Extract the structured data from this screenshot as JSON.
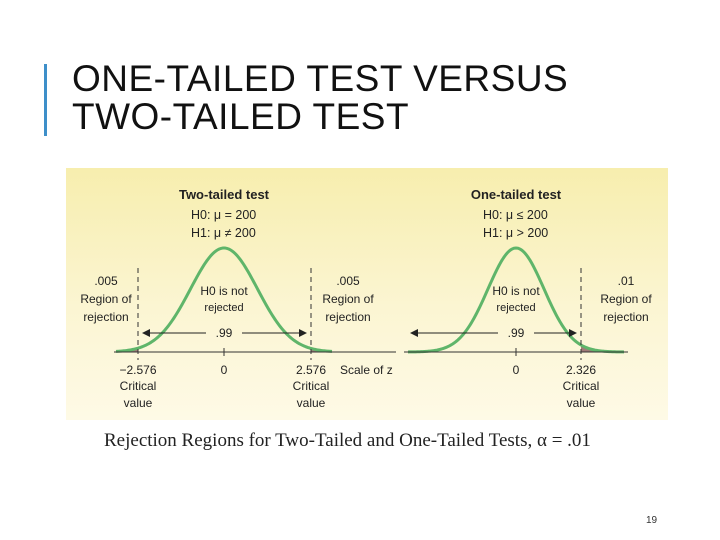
{
  "slide": {
    "title_line1": "ONE-TAILED TEST VERSUS",
    "title_line2": "TWO-TAILED TEST",
    "caption": "Rejection Regions for Two-Tailed and One-Tailed Tests, α = .01",
    "page_number": "19"
  },
  "colors": {
    "accent": "#3e8fc9",
    "curve": "#5fb56a",
    "rejection_fill": "#a07a78",
    "panel_background": "#f7eeae"
  },
  "figure": {
    "scale_label": "Scale of z",
    "two_tailed": {
      "title": "Two-tailed test",
      "h0": "H0: μ = 200",
      "h1": "H1: μ ≠ 200",
      "center_line1": "H0 is not",
      "center_line2": "rejected",
      "middle_area": ".99",
      "left_region": {
        "alpha": ".005",
        "line1": "Region of",
        "line2": "rejection"
      },
      "right_region": {
        "alpha": ".005",
        "line1": "Region of",
        "line2": "rejection"
      },
      "ticks": {
        "left": "−2.576",
        "center": "0",
        "right": "2.576"
      },
      "left_critical": [
        "Critical",
        "value"
      ],
      "right_critical": [
        "Critical",
        "value"
      ]
    },
    "one_tailed": {
      "title": "One-tailed test",
      "h0": "H0: μ ≤ 200",
      "h1": "H1: μ > 200",
      "center_line1": "H0 is not",
      "center_line2": "rejected",
      "middle_area": ".99",
      "right_region": {
        "alpha": ".01",
        "line1": "Region of",
        "line2": "rejection"
      },
      "ticks": {
        "center": "0",
        "right": "2.326"
      },
      "right_critical": [
        "Critical",
        "value"
      ]
    }
  }
}
